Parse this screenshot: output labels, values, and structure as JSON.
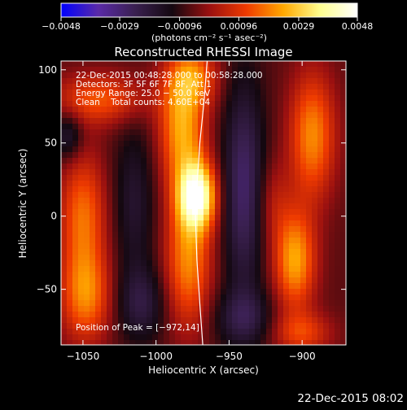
{
  "chart_data": {
    "type": "heatmap",
    "title": "Reconstructed RHESSI Image",
    "xlabel": "Heliocentric X (arcsec)",
    "ylabel": "Heliocentric Y (arcsec)",
    "xlim": [
      -1065,
      -870
    ],
    "ylim": [
      -88,
      106
    ],
    "x_ticks": [
      -1050,
      -1000,
      -950,
      -900
    ],
    "x_tick_labels": [
      "−1050",
      "−1000",
      "−950",
      "−900"
    ],
    "y_ticks": [
      -50,
      0,
      50,
      100
    ],
    "y_tick_labels": [
      "−50",
      "0",
      "50",
      "100"
    ],
    "colorbar": {
      "range": [
        -0.0048,
        0.0048
      ],
      "ticks": [
        -0.0048,
        -0.0029,
        -0.00096,
        0.00096,
        0.0029,
        0.0048
      ],
      "tick_labels": [
        "−0.0048",
        "−0.0029",
        "−0.00096",
        "0.00096",
        "0.0029",
        "0.0048"
      ],
      "unit_label": "(photons cm⁻² s⁻¹ asec⁻²)",
      "colors": [
        "#0000ff",
        "#5a2aa8",
        "#3a2050",
        "#140810",
        "#9a1010",
        "#ee3a00",
        "#ffa800",
        "#ffff90",
        "#ffffff"
      ]
    },
    "annotations": [
      "22-Dec-2015 00:48:28.000 to 00:58:28.000",
      "Detectors: 3F 5F 6F 7F 8F, Att 1",
      "Energy Range: 25.0 − 50.0 keV",
      "Clean    Total counts: 4.60E+04"
    ],
    "peak_label": "Position of Peak = [−972,14]",
    "peak": [
      -972,
      14
    ],
    "blobs": [
      {
        "x": -972,
        "y": 14,
        "sx": 9,
        "sy": 16,
        "a": 1.0
      },
      {
        "x": -982,
        "y": 60,
        "sx": 11,
        "sy": 28,
        "a": 0.62
      },
      {
        "x": -978,
        "y": -30,
        "sx": 11,
        "sy": 32,
        "a": 0.55
      },
      {
        "x": -975,
        "y": 95,
        "sx": 12,
        "sy": 14,
        "a": 0.45
      },
      {
        "x": -1038,
        "y": 80,
        "sx": 22,
        "sy": 12,
        "a": 0.42
      },
      {
        "x": -1050,
        "y": 0,
        "sx": 11,
        "sy": 30,
        "a": 0.48
      },
      {
        "x": -1048,
        "y": -55,
        "sx": 12,
        "sy": 22,
        "a": 0.5
      },
      {
        "x": -1015,
        "y": 10,
        "sx": 10,
        "sy": 38,
        "a": -0.25
      },
      {
        "x": -1010,
        "y": -60,
        "sx": 12,
        "sy": 18,
        "a": -0.3
      },
      {
        "x": -940,
        "y": 20,
        "sx": 10,
        "sy": 52,
        "a": -0.45
      },
      {
        "x": -940,
        "y": -70,
        "sx": 14,
        "sy": 14,
        "a": -0.3
      },
      {
        "x": -905,
        "y": -30,
        "sx": 10,
        "sy": 24,
        "a": 0.62
      },
      {
        "x": -893,
        "y": 55,
        "sx": 11,
        "sy": 30,
        "a": 0.55
      },
      {
        "x": -900,
        "y": -80,
        "sx": 14,
        "sy": 10,
        "a": 0.35
      },
      {
        "x": -920,
        "y": 10,
        "sx": 8,
        "sy": 20,
        "a": 0.18
      },
      {
        "x": -1060,
        "y": 55,
        "sx": 7,
        "sy": 12,
        "a": -0.3
      }
    ],
    "limb_curve": [
      [
        -965,
        106
      ],
      [
        -967,
        80
      ],
      [
        -970,
        50
      ],
      [
        -972,
        20
      ],
      [
        -973,
        0
      ],
      [
        -972,
        -30
      ],
      [
        -970,
        -60
      ],
      [
        -968,
        -88
      ]
    ]
  },
  "footer": {
    "timestamp": "22-Dec-2015 08:02"
  }
}
